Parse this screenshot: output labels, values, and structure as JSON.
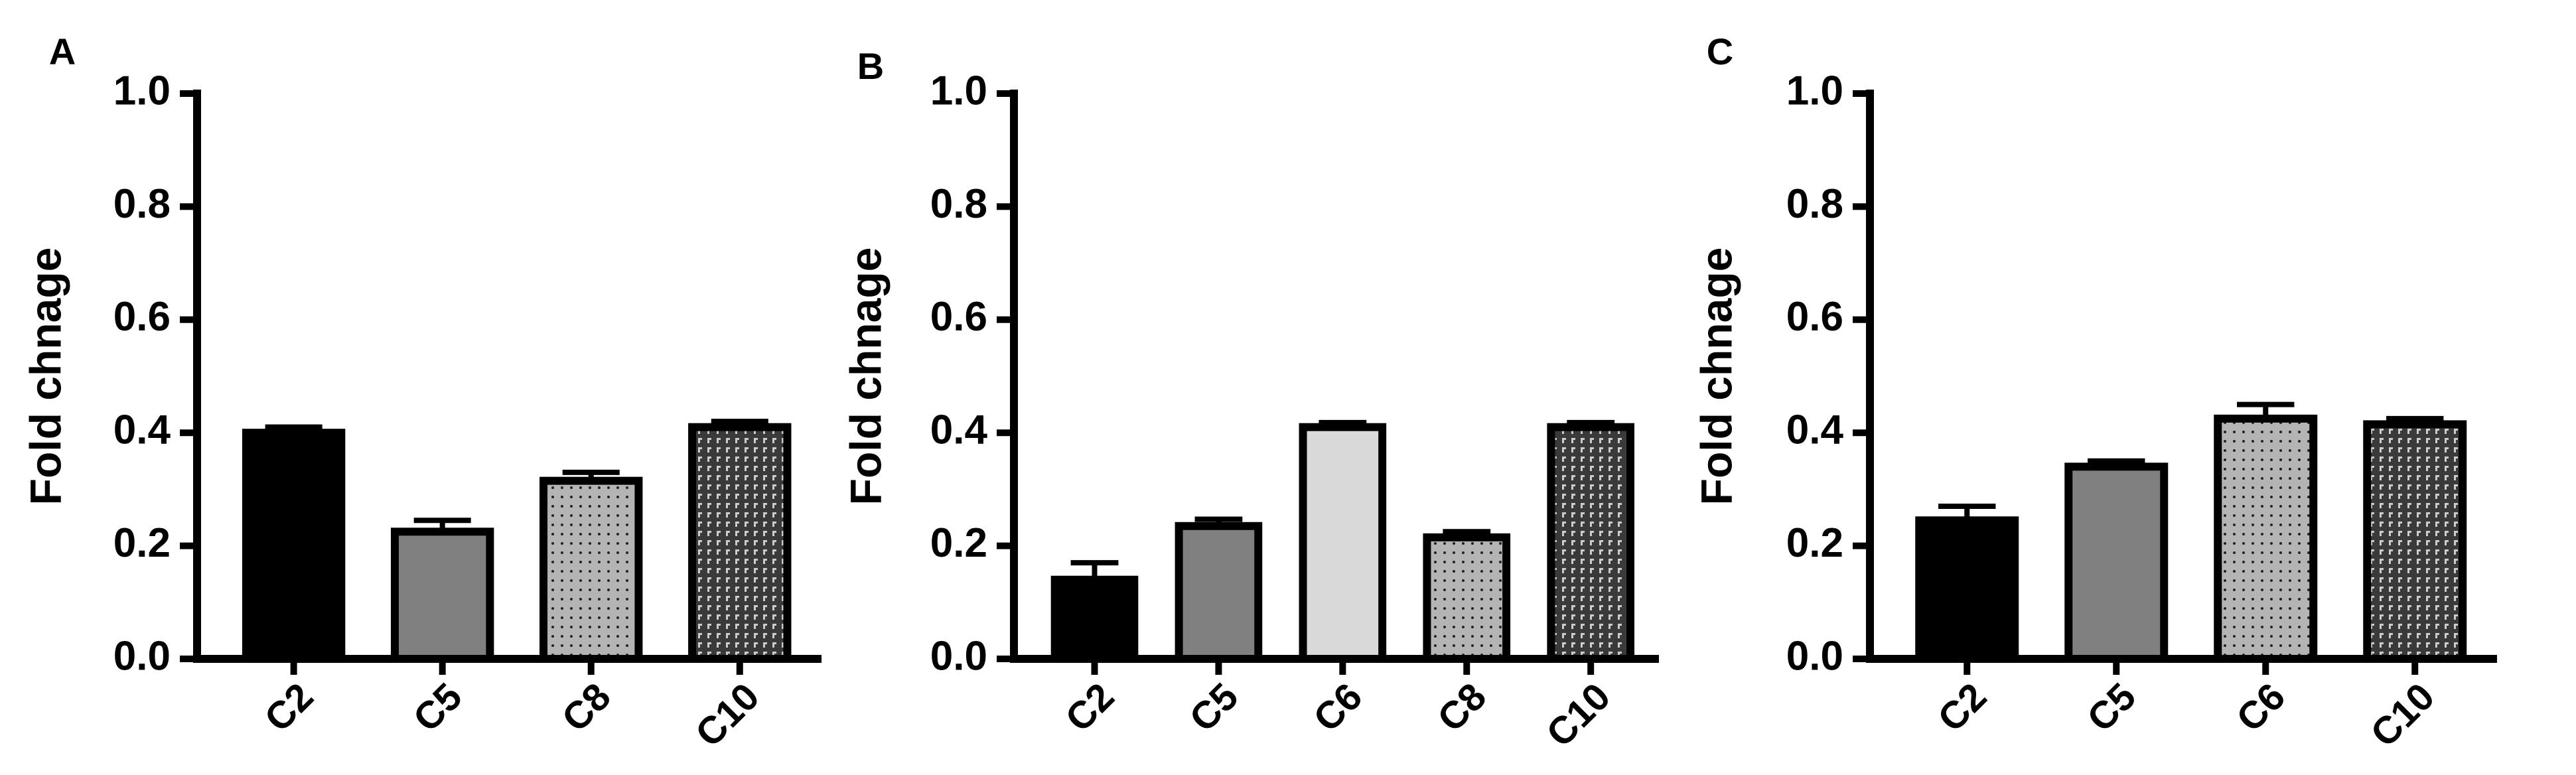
{
  "chart_data": [
    {
      "type": "bar",
      "panel": "A",
      "ylabel": "Fold chnage",
      "categories": [
        "C2",
        "C5",
        "C8",
        "C10"
      ],
      "values": [
        0.4,
        0.225,
        0.315,
        0.41
      ],
      "errors": [
        0.01,
        0.02,
        0.015,
        0.01
      ],
      "colors": [
        "#000000",
        "#808080",
        "#b4b4b4",
        "#3a3a3a"
      ],
      "patterns": [
        "solid",
        "solid",
        "dots",
        "checker"
      ],
      "ylim": [
        0,
        1
      ],
      "yticks": [
        {
          "value": 0,
          "label": "0.0"
        },
        0.2,
        0.4,
        0.6,
        0.8,
        {
          "value": 1,
          "label": "1.0"
        }
      ]
    },
    {
      "type": "bar",
      "panel": "B",
      "ylabel": "Fold chnage",
      "categories": [
        "C2",
        "C5",
        "C6",
        "C8",
        "C10"
      ],
      "values": [
        0.14,
        0.235,
        0.41,
        0.215,
        0.41
      ],
      "errors": [
        0.03,
        0.012,
        0.008,
        0.01,
        0.008
      ],
      "colors": [
        "#000000",
        "#808080",
        "#d9d9d9",
        "#b4b4b4",
        "#3a3a3a"
      ],
      "patterns": [
        "solid",
        "solid",
        "solid",
        "dots",
        "checker"
      ],
      "ylim": [
        0,
        1
      ],
      "yticks": [
        {
          "value": 0,
          "label": "0.0"
        },
        0.2,
        0.4,
        0.6,
        0.8,
        {
          "value": 1,
          "label": "1.0"
        }
      ]
    },
    {
      "type": "bar",
      "panel": "C",
      "ylabel": "Fold chnage",
      "categories": [
        "C2",
        "C5",
        "C6",
        "C10"
      ],
      "values": [
        0.245,
        0.34,
        0.425,
        0.415
      ],
      "errors": [
        0.025,
        0.01,
        0.025,
        0.01
      ],
      "colors": [
        "#000000",
        "#808080",
        "#b4b4b4",
        "#3a3a3a"
      ],
      "patterns": [
        "solid",
        "solid",
        "dots",
        "checker"
      ],
      "ylim": [
        0,
        1
      ],
      "yticks": [
        {
          "value": 0,
          "label": "0.0"
        },
        0.2,
        0.4,
        0.6,
        0.8,
        {
          "value": 1,
          "label": "1.0"
        }
      ]
    }
  ]
}
